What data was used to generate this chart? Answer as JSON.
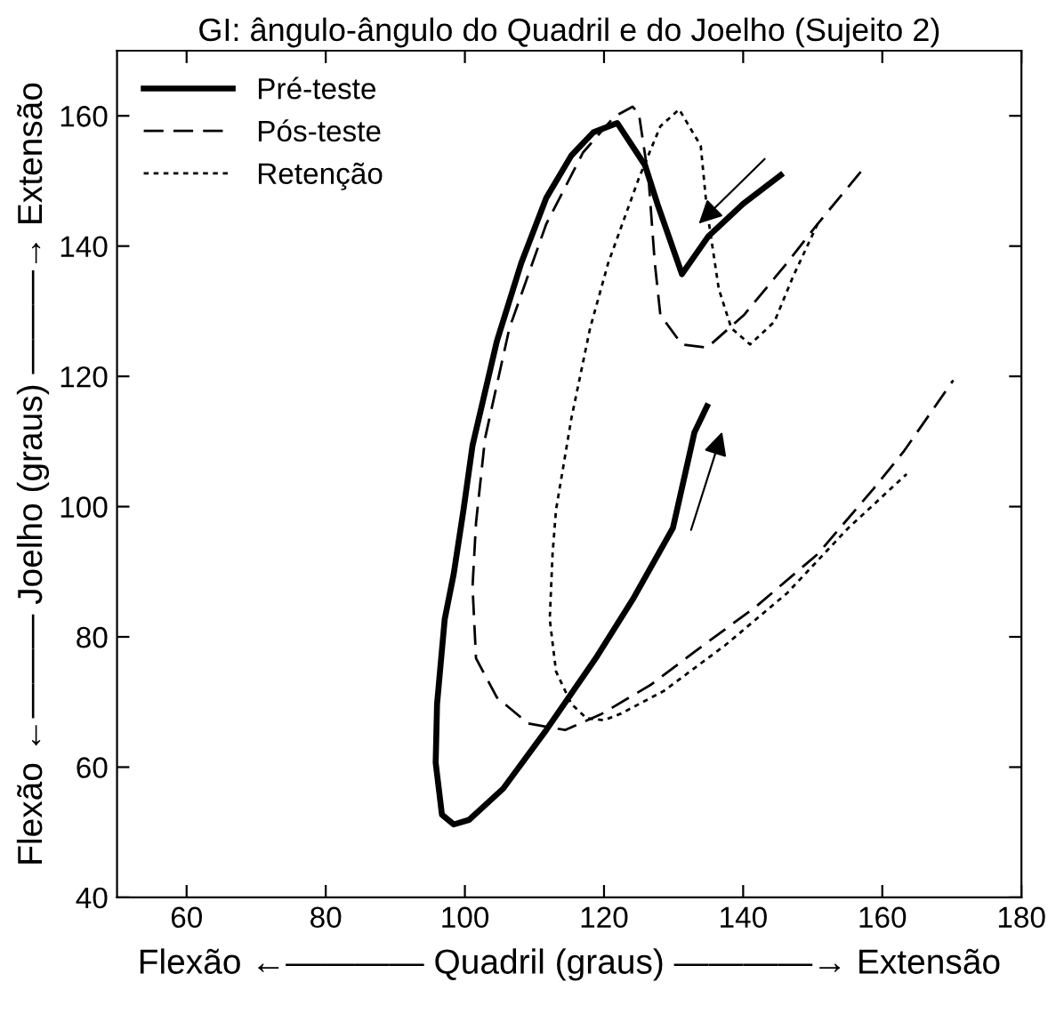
{
  "chart_data": {
    "type": "line",
    "title": "GI: ângulo-ângulo do Quadril e do Joelho (Sujeito 2)",
    "xlabel": "Flexão ←———— Quadril (graus) ————→ Extensão",
    "ylabel": "Flexão ←——— Joelho (graus) ———→ Extensão",
    "xlim": [
      50,
      180
    ],
    "xticks": [
      60,
      80,
      100,
      120,
      140,
      160,
      180
    ],
    "ylim": [
      40,
      170
    ],
    "yticks": [
      40,
      60,
      80,
      100,
      120,
      140,
      160
    ],
    "grid": false,
    "legend": "top left",
    "marker": "none",
    "series": [
      {
        "name": "Pré-teste",
        "color": "#000000",
        "line_style": "solid",
        "x": [
          145.4,
          140,
          135,
          131.2,
          127.7,
          125.9,
          121.9,
          118.5,
          115.3,
          111.7,
          108.1,
          104.6,
          101.1,
          99.8,
          98.4,
          97.1,
          96.0,
          95.8,
          96.7,
          98.4,
          100.6,
          105.5,
          111.7,
          118.8,
          124.1,
          129.9,
          133.0,
          134.8
        ],
        "values": [
          150.9,
          146.5,
          141.5,
          135.7,
          146.4,
          152.4,
          158.9,
          157.5,
          153.9,
          147.4,
          137.4,
          125.4,
          109.4,
          99.5,
          89.7,
          82.7,
          69.7,
          60.7,
          52.7,
          51.2,
          51.9,
          56.7,
          65.7,
          76.7,
          85.7,
          96.7,
          111.4,
          115.4
        ]
      },
      {
        "name": "Pós-teste",
        "color": "#000000",
        "line_style": "dashed",
        "x": [
          156.9,
          150.7,
          146.3,
          140.1,
          134.8,
          131.2,
          128.1,
          127.3,
          126.4,
          125.0,
          124.1,
          121.5,
          117.0,
          111.7,
          106.4,
          102.9,
          101.6,
          101.1,
          101.6,
          104.6,
          109.1,
          114.4,
          119.7,
          126.8,
          133.0,
          141.9,
          150.7,
          158.7,
          163.1,
          170.2
        ],
        "values": [
          151.4,
          143.4,
          137.4,
          129.4,
          124.4,
          124.9,
          129.4,
          137.4,
          150.4,
          160.4,
          161.4,
          159.9,
          154.4,
          143.4,
          127.4,
          110.5,
          97.5,
          87.7,
          76.7,
          70.7,
          66.7,
          65.7,
          68.2,
          72.7,
          77.7,
          84.7,
          92.7,
          102.7,
          108.5,
          119.4
        ]
      },
      {
        "name": "Retenção",
        "color": "#000000",
        "line_style": "dotted",
        "x": [
          150.7,
          147.2,
          144.5,
          141.0,
          138.3,
          136.5,
          134.8,
          133.9,
          130.8,
          128.1,
          125.0,
          120.6,
          118.0,
          115.3,
          113.1,
          112.6,
          112.2,
          113.1,
          115.3,
          117.5,
          120.0,
          122.4,
          128.6,
          137.4,
          146.3,
          155.1,
          163.5
        ],
        "values": [
          143.4,
          135.4,
          128.4,
          124.9,
          127.4,
          133.4,
          145.5,
          155.4,
          161.0,
          158.4,
          150.4,
          137.4,
          127.4,
          113.5,
          99.5,
          92.7,
          82.7,
          74.7,
          69.7,
          67.5,
          67.2,
          68.2,
          71.7,
          78.7,
          86.7,
          96.7,
          105.0
        ]
      }
    ]
  }
}
